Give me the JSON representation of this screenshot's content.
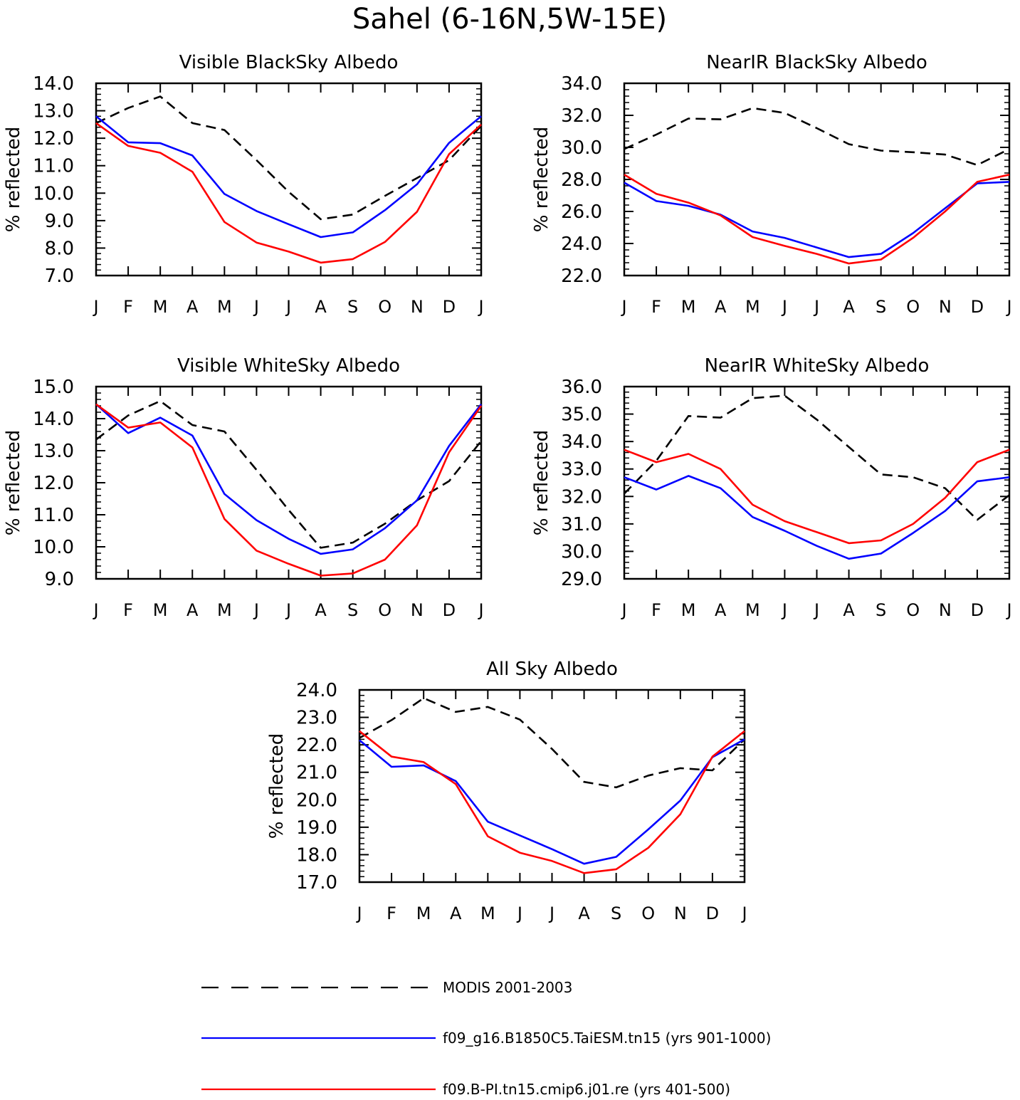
{
  "figure": {
    "title": "Sahel (6-16N,5W-15E)"
  },
  "chart_data": [
    {
      "type": "line",
      "title": "Visible BlackSky Albedo",
      "ylabel": "% reflected",
      "categories": [
        "J",
        "F",
        "M",
        "A",
        "M",
        "J",
        "J",
        "A",
        "S",
        "O",
        "N",
        "D",
        "J"
      ],
      "ylim": [
        7.0,
        14.0
      ],
      "yticks": [
        "7.0",
        "8.0",
        "9.0",
        "10.0",
        "11.0",
        "12.0",
        "13.0",
        "14.0"
      ],
      "series": [
        {
          "name": "MODIS 2001-2003",
          "values": [
            12.55,
            13.1,
            13.52,
            12.55,
            12.3,
            11.2,
            10.05,
            9.05,
            9.22,
            9.9,
            10.55,
            11.2,
            12.45
          ]
        },
        {
          "name": "f09_g16.B1850C5.TaiESM.tn15 (yrs 901-1000)",
          "values": [
            12.8,
            11.85,
            11.82,
            11.37,
            9.97,
            9.35,
            8.87,
            8.4,
            8.57,
            9.38,
            10.32,
            11.83,
            12.8
          ]
        },
        {
          "name": "f09.B-PI.tn15.cmip6.j01.re (yrs 401-500)",
          "values": [
            12.55,
            11.72,
            11.47,
            10.78,
            8.95,
            8.2,
            7.87,
            7.47,
            7.6,
            8.22,
            9.32,
            11.42,
            12.5
          ]
        }
      ]
    },
    {
      "type": "line",
      "title": "NearIR BlackSky Albedo",
      "ylabel": "% reflected",
      "categories": [
        "J",
        "F",
        "M",
        "A",
        "M",
        "J",
        "J",
        "A",
        "S",
        "O",
        "N",
        "D",
        "J"
      ],
      "ylim": [
        22.0,
        34.0
      ],
      "yticks": [
        "22.0",
        "24.0",
        "26.0",
        "28.0",
        "30.0",
        "32.0",
        "34.0"
      ],
      "series": [
        {
          "name": "MODIS 2001-2003",
          "values": [
            29.9,
            30.8,
            31.8,
            31.75,
            32.45,
            32.15,
            31.2,
            30.2,
            29.8,
            29.7,
            29.55,
            28.9,
            29.9
          ]
        },
        {
          "name": "f09_g16.B1850C5.TaiESM.tn15 (yrs 901-1000)",
          "values": [
            27.8,
            26.65,
            26.35,
            25.8,
            24.75,
            24.35,
            23.75,
            23.15,
            23.35,
            24.65,
            26.2,
            27.75,
            27.85
          ]
        },
        {
          "name": "f09.B-PI.tn15.cmip6.j01.re (yrs 401-500)",
          "values": [
            28.3,
            27.1,
            26.55,
            25.75,
            24.4,
            23.85,
            23.35,
            22.75,
            23.0,
            24.35,
            26.0,
            27.85,
            28.3
          ]
        }
      ]
    },
    {
      "type": "line",
      "title": "Visible WhiteSky Albedo",
      "ylabel": "% reflected",
      "categories": [
        "J",
        "F",
        "M",
        "A",
        "M",
        "J",
        "J",
        "A",
        "S",
        "O",
        "N",
        "D",
        "J"
      ],
      "ylim": [
        9.0,
        15.0
      ],
      "yticks": [
        "9.0",
        "10.0",
        "11.0",
        "12.0",
        "13.0",
        "14.0",
        "15.0"
      ],
      "series": [
        {
          "name": "MODIS 2001-2003",
          "values": [
            13.35,
            14.1,
            14.55,
            13.8,
            13.6,
            12.4,
            11.15,
            9.97,
            10.13,
            10.72,
            11.45,
            12.05,
            13.3
          ]
        },
        {
          "name": "f09_g16.B1850C5.TaiESM.tn15 (yrs 901-1000)",
          "values": [
            14.45,
            13.55,
            14.03,
            13.47,
            11.65,
            10.83,
            10.25,
            9.78,
            9.92,
            10.58,
            11.45,
            13.15,
            14.45
          ]
        },
        {
          "name": "f09.B-PI.tn15.cmip6.j01.re (yrs 401-500)",
          "values": [
            14.45,
            13.72,
            13.88,
            13.1,
            10.87,
            9.88,
            9.47,
            9.1,
            9.17,
            9.6,
            10.67,
            12.95,
            14.4
          ]
        }
      ]
    },
    {
      "type": "line",
      "title": "NearIR WhiteSky Albedo",
      "ylabel": "% reflected",
      "categories": [
        "J",
        "F",
        "M",
        "A",
        "M",
        "J",
        "J",
        "A",
        "S",
        "O",
        "N",
        "D",
        "J"
      ],
      "ylim": [
        29.0,
        36.0
      ],
      "yticks": [
        "29.0",
        "30.0",
        "31.0",
        "32.0",
        "33.0",
        "34.0",
        "35.0",
        "36.0"
      ],
      "series": [
        {
          "name": "MODIS 2001-2003",
          "values": [
            32.1,
            33.3,
            34.93,
            34.87,
            35.58,
            35.67,
            34.8,
            33.8,
            32.8,
            32.7,
            32.3,
            31.15,
            32.05
          ]
        },
        {
          "name": "f09_g16.B1850C5.TaiESM.tn15 (yrs 901-1000)",
          "values": [
            32.7,
            32.25,
            32.75,
            32.3,
            31.25,
            30.75,
            30.2,
            29.73,
            29.92,
            30.67,
            31.47,
            32.55,
            32.7
          ]
        },
        {
          "name": "f09.B-PI.tn15.cmip6.j01.re (yrs 401-500)",
          "values": [
            33.7,
            33.25,
            33.55,
            33.0,
            31.7,
            31.1,
            30.7,
            30.3,
            30.4,
            31.0,
            31.95,
            33.25,
            33.7
          ]
        }
      ]
    },
    {
      "type": "line",
      "title": "All Sky Albedo",
      "ylabel": "% reflected",
      "categories": [
        "J",
        "F",
        "M",
        "A",
        "M",
        "J",
        "J",
        "A",
        "S",
        "O",
        "N",
        "D",
        "J"
      ],
      "ylim": [
        17.0,
        24.0
      ],
      "yticks": [
        "17.0",
        "18.0",
        "19.0",
        "20.0",
        "21.0",
        "22.0",
        "23.0",
        "24.0"
      ],
      "series": [
        {
          "name": "MODIS 2001-2003",
          "values": [
            22.25,
            22.9,
            23.7,
            23.2,
            23.38,
            22.92,
            21.85,
            20.65,
            20.45,
            20.88,
            21.15,
            21.07,
            22.2
          ]
        },
        {
          "name": "f09_g16.B1850C5.TaiESM.tn15 (yrs 901-1000)",
          "values": [
            22.17,
            21.2,
            21.25,
            20.68,
            19.2,
            18.7,
            18.2,
            17.67,
            17.92,
            18.92,
            19.97,
            21.55,
            22.2
          ]
        },
        {
          "name": "f09.B-PI.tn15.cmip6.j01.re (yrs 401-500)",
          "values": [
            22.5,
            21.57,
            21.37,
            20.57,
            18.67,
            18.07,
            17.77,
            17.33,
            17.47,
            18.25,
            19.47,
            21.57,
            22.5
          ]
        }
      ]
    }
  ],
  "legend": {
    "items": [
      {
        "label": "MODIS 2001-2003",
        "color": "#000000",
        "style": "dashed"
      },
      {
        "label": "f09_g16.B1850C5.TaiESM.tn15 (yrs 901-1000)",
        "color": "#0000ff",
        "style": "solid"
      },
      {
        "label": "f09.B-PI.tn15.cmip6.j01.re (yrs 401-500)",
        "color": "#ff0000",
        "style": "solid"
      }
    ]
  },
  "colors": {
    "modis": "#000000",
    "taiesm": "#0000ff",
    "cmip6": "#ff0000"
  }
}
